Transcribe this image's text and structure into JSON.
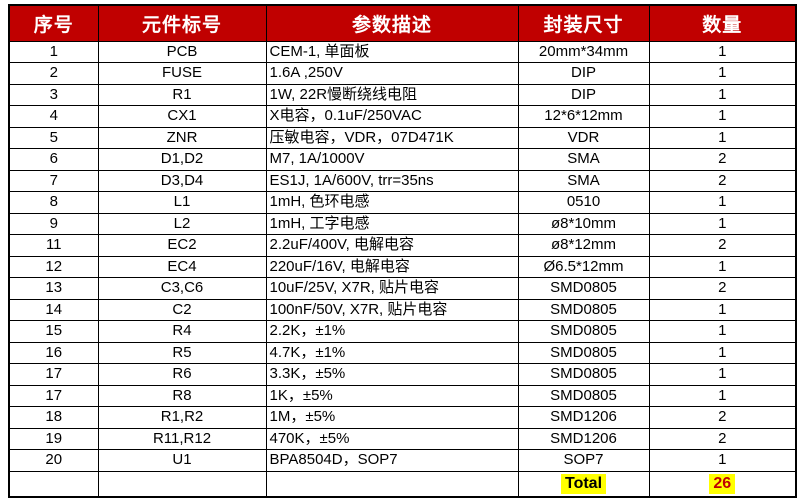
{
  "table": {
    "columns": [
      {
        "key": "serial",
        "label": "序号"
      },
      {
        "key": "designator",
        "label": "元件标号"
      },
      {
        "key": "description",
        "label": "参数描述"
      },
      {
        "key": "package",
        "label": "封装尺寸"
      },
      {
        "key": "qty",
        "label": "数量"
      }
    ],
    "rows": [
      [
        "1",
        "PCB",
        "CEM-1, 单面板",
        "20mm*34mm",
        "1"
      ],
      [
        "2",
        "FUSE",
        "1.6A ,250V",
        "DIP",
        "1"
      ],
      [
        "3",
        "R1",
        "1W, 22R慢断绕线电阻",
        "DIP",
        "1"
      ],
      [
        "4",
        "CX1",
        "X电容，0.1uF/250VAC",
        "12*6*12mm",
        "1"
      ],
      [
        "5",
        "ZNR",
        "压敏电容，VDR，07D471K",
        "VDR",
        "1"
      ],
      [
        "6",
        "D1,D2",
        "M7, 1A/1000V",
        "SMA",
        "2"
      ],
      [
        "7",
        "D3,D4",
        "ES1J, 1A/600V, trr=35ns",
        "SMA",
        "2"
      ],
      [
        "8",
        "L1",
        "1mH, 色环电感",
        "0510",
        "1"
      ],
      [
        "9",
        "L2",
        "1mH, 工字电感",
        "ø8*10mm",
        "1"
      ],
      [
        "11",
        "EC2",
        "2.2uF/400V, 电解电容",
        "ø8*12mm",
        "2"
      ],
      [
        "12",
        "EC4",
        "220uF/16V, 电解电容",
        "Ø6.5*12mm",
        "1"
      ],
      [
        "13",
        "C3,C6",
        "10uF/25V, X7R, 贴片电容",
        "SMD0805",
        "2"
      ],
      [
        "14",
        "C2",
        "100nF/50V, X7R, 贴片电容",
        "SMD0805",
        "1"
      ],
      [
        "15",
        "R4",
        "2.2K，±1%",
        "SMD0805",
        "1"
      ],
      [
        "16",
        "R5",
        "4.7K，±1%",
        "SMD0805",
        "1"
      ],
      [
        "17",
        "R6",
        "3.3K，±5%",
        "SMD0805",
        "1"
      ],
      [
        "17",
        "R8",
        "1K，±5%",
        "SMD0805",
        "1"
      ],
      [
        "18",
        "R1,R2",
        "1M，±5%",
        "SMD1206",
        "2"
      ],
      [
        "19",
        "R11,R12",
        "470K，±5%",
        "SMD1206",
        "2"
      ],
      [
        "20",
        "U1",
        "BPA8504D，SOP7",
        "SOP7",
        "1"
      ]
    ],
    "total_row": {
      "label": "Total",
      "value": "26"
    },
    "colors": {
      "header_bg": "#C00000",
      "header_text": "#FFFFFF",
      "highlight_bg": "#FFFF00",
      "total_value_text": "#C00000",
      "border": "#000000"
    }
  }
}
